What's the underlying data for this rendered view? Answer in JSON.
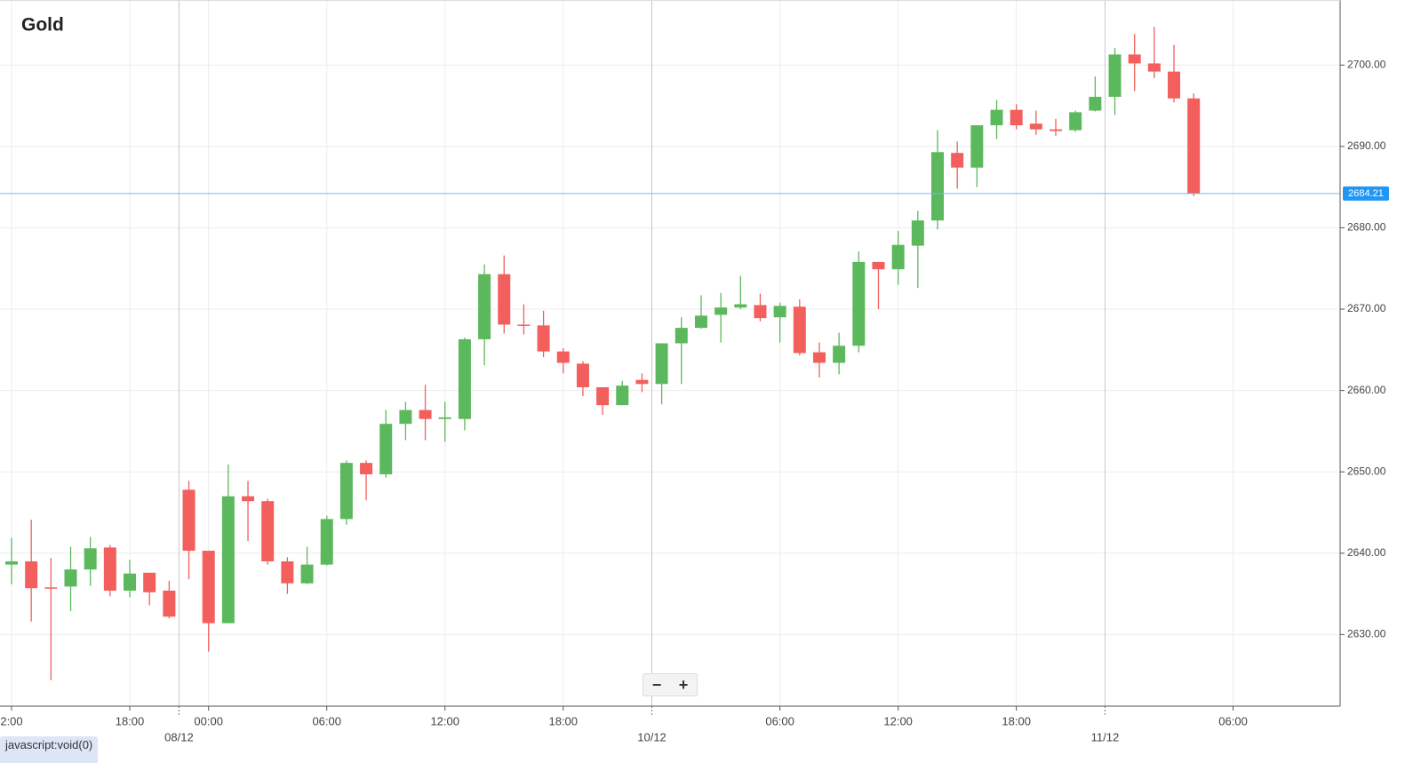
{
  "chart_data": {
    "type": "candlestick",
    "title": "Gold",
    "categories": [
      "2:00",
      null,
      null,
      null,
      null,
      null,
      "18:00",
      null,
      null,
      null,
      "00:00",
      null,
      null,
      null,
      null,
      null,
      "06:00",
      null,
      null,
      null,
      null,
      null,
      "12:00",
      null,
      null,
      null,
      null,
      null,
      "18:00",
      null,
      null,
      null,
      null,
      null,
      null,
      null,
      null,
      null,
      null,
      "06:00",
      null,
      null,
      null,
      null,
      null,
      "12:00",
      null,
      null,
      null,
      null,
      null,
      "18:00",
      null,
      null,
      null,
      null,
      null,
      null,
      null,
      null,
      null,
      null,
      "06:00",
      null,
      null,
      null,
      null,
      null
    ],
    "date_labels": [
      null,
      null,
      null,
      null,
      null,
      null,
      null,
      null,
      null,
      "08/12",
      null,
      null,
      null,
      null,
      null,
      null,
      null,
      null,
      null,
      null,
      null,
      null,
      null,
      null,
      null,
      null,
      null,
      null,
      null,
      null,
      null,
      null,
      null,
      "10/12",
      null,
      null,
      null,
      null,
      null,
      null,
      null,
      null,
      null,
      null,
      null,
      null,
      null,
      null,
      null,
      null,
      null,
      null,
      null,
      null,
      null,
      null,
      "11/12",
      null,
      null,
      null,
      null,
      null,
      null,
      null,
      null,
      null,
      null,
      null
    ],
    "open": [
      2638.6,
      2639.0,
      2635.8,
      2635.9,
      2638.0,
      2640.7,
      2635.4,
      2637.6,
      2635.4,
      2647.8,
      2640.3,
      2631.4,
      2647.0,
      2646.4,
      2639.0,
      2636.3,
      2638.6,
      2644.2,
      2651.1,
      2649.7,
      2655.9,
      2657.6,
      2656.5,
      2656.5,
      2666.3,
      2674.3,
      2668.1,
      2668.0,
      2664.8,
      2663.3,
      2660.4,
      2658.2,
      2661.3,
      2660.8,
      2665.8,
      2667.7,
      2669.3,
      2670.2,
      2670.5,
      2669.0,
      2670.3,
      2664.7,
      2663.4,
      2665.5,
      2675.8,
      2674.9,
      2677.8,
      2680.9,
      2689.2,
      2687.4,
      2692.6,
      2694.5,
      2692.8,
      2692.1,
      2692.0,
      2694.4,
      2696.1,
      2701.3,
      2700.2,
      2699.2,
      2695.9,
      null,
      null,
      null,
      null,
      null,
      null,
      null
    ],
    "high": [
      2641.9,
      2644.1,
      2639.4,
      2640.8,
      2642.0,
      2641.0,
      2639.2,
      2637.6,
      2636.6,
      2648.9,
      2640.3,
      2650.9,
      2648.9,
      2646.7,
      2639.5,
      2640.8,
      2644.6,
      2651.4,
      2651.4,
      2657.6,
      2658.6,
      2660.7,
      2658.6,
      2666.5,
      2675.5,
      2676.6,
      2670.6,
      2669.8,
      2665.2,
      2663.6,
      2660.4,
      2661.2,
      2662.1,
      2665.8,
      2669.0,
      2671.7,
      2672.0,
      2674.1,
      2671.9,
      2670.8,
      2671.2,
      2665.9,
      2667.1,
      2677.1,
      2675.8,
      2679.6,
      2682.1,
      2692.0,
      2690.6,
      2692.6,
      2695.7,
      2695.2,
      2694.4,
      2693.4,
      2694.4,
      2698.6,
      2702.1,
      2703.8,
      2704.7,
      2702.5,
      2696.5,
      null,
      null,
      null,
      null,
      null,
      null,
      null
    ],
    "low": [
      2636.2,
      2631.6,
      2624.4,
      2632.9,
      2636.0,
      2634.7,
      2634.6,
      2633.6,
      2632.0,
      2636.8,
      2627.9,
      2631.4,
      2641.5,
      2638.6,
      2635.0,
      2636.2,
      2638.5,
      2643.5,
      2646.5,
      2649.3,
      2653.9,
      2653.9,
      2653.7,
      2655.1,
      2663.1,
      2667.0,
      2666.9,
      2664.1,
      2662.1,
      2659.3,
      2657.0,
      2658.2,
      2659.8,
      2658.3,
      2660.8,
      2667.6,
      2665.9,
      2670.0,
      2668.5,
      2665.9,
      2664.3,
      2661.6,
      2662.0,
      2664.7,
      2670.0,
      2673.0,
      2672.6,
      2679.8,
      2684.8,
      2685.0,
      2690.9,
      2692.1,
      2691.4,
      2691.3,
      2691.8,
      2694.3,
      2693.9,
      2696.8,
      2698.4,
      2695.4,
      2683.9,
      null,
      null,
      null,
      null,
      null,
      null,
      null
    ],
    "close": [
      2639.0,
      2635.7,
      2635.7,
      2638.0,
      2640.6,
      2635.4,
      2637.5,
      2635.2,
      2632.2,
      2640.3,
      2631.4,
      2647.0,
      2646.4,
      2639.0,
      2636.3,
      2638.6,
      2644.2,
      2651.1,
      2649.7,
      2655.9,
      2657.6,
      2656.5,
      2656.7,
      2666.3,
      2674.3,
      2668.1,
      2668.0,
      2664.8,
      2663.4,
      2660.4,
      2658.2,
      2660.6,
      2660.8,
      2665.8,
      2667.7,
      2669.2,
      2670.2,
      2670.6,
      2668.9,
      2670.4,
      2664.6,
      2663.4,
      2665.5,
      2675.8,
      2674.9,
      2677.9,
      2680.9,
      2689.3,
      2687.4,
      2692.6,
      2694.5,
      2692.6,
      2692.1,
      2691.9,
      2694.2,
      2696.1,
      2701.3,
      2700.2,
      2699.2,
      2695.9,
      2684.21,
      null,
      null,
      null,
      null,
      null,
      null,
      null
    ],
    "up_color": "#5cb85c",
    "down_color": "#f25f5c",
    "ylim": [
      2621.2,
      2708.0
    ],
    "yticks": [
      {
        "value": 2630,
        "label": "2630.00"
      },
      {
        "value": 2640,
        "label": "2640.00"
      },
      {
        "value": 2650,
        "label": "2650.00"
      },
      {
        "value": 2660,
        "label": "2660.00"
      },
      {
        "value": 2670,
        "label": "2670.00"
      },
      {
        "value": 2680,
        "label": "2680.00"
      },
      {
        "value": 2690,
        "label": "2690.00"
      },
      {
        "value": 2700,
        "label": "2700.00"
      }
    ],
    "last_price": 2684.21,
    "last_price_color": "#2196f3",
    "grid": true
  },
  "zoom_controls": [
    "−",
    "+"
  ],
  "status_text": "javascript:void(0)"
}
